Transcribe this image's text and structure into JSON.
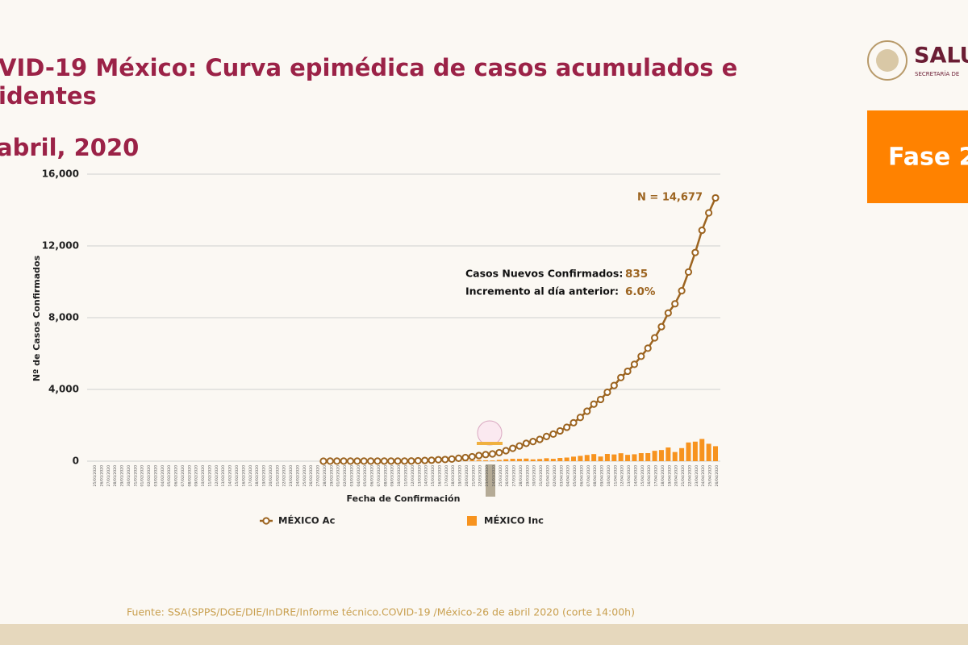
{
  "slide": {
    "title_line1": "VID-19 México: Curva epimédica de casos acumulados e",
    "title_line2": "identes",
    "date": "abril, 2020",
    "logo_text": "SALU",
    "logo_sub": "SECRETARÍA DE",
    "phase": "Fase 2",
    "source": "Fuente: SSA(SPPS/DGE/DIE/InDRE/Informe técnico.COVID-19 /México-26 de abril 2020 (corte 14:00h)"
  },
  "chart_data": {
    "type": "line",
    "y_label": "Nº de Casos Confirmados",
    "x_label": "Fecha de Confirmación",
    "ylim": [
      0,
      16000
    ],
    "yticks": [
      0,
      {
        "value": 4000,
        "label": "4,000"
      },
      {
        "value": 8000,
        "label": "8,000"
      },
      {
        "value": 12000,
        "label": "12,000"
      },
      {
        "value": 16000,
        "label": "16,000"
      }
    ],
    "grid": true,
    "annotations": {
      "total": "N = 14,677",
      "new_label": "Casos Nuevos Confirmados:",
      "new_value": "835",
      "inc_label": "Incremento al día anterior:",
      "inc_value": "6.0%"
    },
    "categories": [
      "25/01/2020",
      "26/01/2020",
      "27/01/2020",
      "28/01/2020",
      "29/01/2020",
      "30/01/2020",
      "31/01/2020",
      "01/02/2020",
      "02/02/2020",
      "03/02/2020",
      "04/02/2020",
      "05/02/2020",
      "06/02/2020",
      "07/02/2020",
      "08/02/2020",
      "09/02/2020",
      "10/02/2020",
      "11/02/2020",
      "12/02/2020",
      "13/02/2020",
      "14/02/2020",
      "15/02/2020",
      "16/02/2020",
      "17/02/2020",
      "18/02/2020",
      "19/02/2020",
      "20/02/2020",
      "21/02/2020",
      "22/02/2020",
      "23/02/2020",
      "24/02/2020",
      "25/02/2020",
      "26/02/2020",
      "27/02/2020",
      "28/02/2020",
      "29/02/2020",
      "01/03/2020",
      "02/03/2020",
      "03/03/2020",
      "04/03/2020",
      "05/03/2020",
      "06/03/2020",
      "07/03/2020",
      "08/03/2020",
      "09/03/2020",
      "10/03/2020",
      "11/03/2020",
      "12/03/2020",
      "13/03/2020",
      "14/03/2020",
      "15/03/2020",
      "16/03/2020",
      "17/03/2020",
      "18/03/2020",
      "19/03/2020",
      "20/03/2020",
      "21/03/2020",
      "22/03/2020",
      "23/03/2020",
      "24/03/2020",
      "25/03/2020",
      "26/03/2020",
      "27/03/2020",
      "28/03/2020",
      "29/03/2020",
      "30/03/2020",
      "31/03/2020",
      "01/04/2020",
      "02/04/2020",
      "03/04/2020",
      "04/04/2020",
      "05/04/2020",
      "06/04/2020",
      "07/04/2020",
      "08/04/2020",
      "09/04/2020",
      "10/04/2020",
      "11/04/2020",
      "12/04/2020",
      "13/04/2020",
      "14/04/2020",
      "15/04/2020",
      "16/04/2020",
      "17/04/2020",
      "18/04/2020",
      "19/04/2020",
      "20/04/2020",
      "21/04/2020",
      "22/04/2020",
      "23/04/2020",
      "24/04/2020",
      "25/04/2020",
      "26/04/2020"
    ],
    "series": [
      {
        "name": "MÉXICO Inc",
        "type": "bar",
        "color": "#f7931e",
        "values": [
          null,
          null,
          null,
          null,
          null,
          null,
          null,
          null,
          null,
          null,
          null,
          null,
          null,
          null,
          null,
          null,
          null,
          null,
          null,
          null,
          null,
          null,
          null,
          null,
          null,
          null,
          null,
          null,
          null,
          null,
          null,
          null,
          null,
          null,
          1,
          3,
          1,
          0,
          0,
          0,
          0,
          1,
          0,
          1,
          0,
          0,
          1,
          4,
          14,
          15,
          12,
          29,
          11,
          25,
          46,
          39,
          48,
          65,
          51,
          38,
          70,
          110,
          132,
          131,
          145,
          101,
          121,
          163,
          132,
          178,
          202,
          253,
          296,
          346,
          396,
          260,
          403,
          375,
          442,
          353,
          385,
          448,
          450,
          578,
          622,
          764,
          511,
          729,
          1043,
          1089,
          1239,
          970,
          835
        ]
      },
      {
        "name": "MÉXICO Ac",
        "type": "line",
        "color": "#9c6420",
        "values": [
          null,
          null,
          null,
          null,
          null,
          null,
          null,
          null,
          null,
          null,
          null,
          null,
          null,
          null,
          null,
          null,
          null,
          null,
          null,
          null,
          null,
          null,
          null,
          null,
          null,
          null,
          null,
          null,
          null,
          null,
          null,
          null,
          null,
          null,
          1,
          4,
          5,
          5,
          5,
          5,
          5,
          6,
          6,
          7,
          7,
          7,
          8,
          12,
          26,
          41,
          53,
          82,
          93,
          118,
          164,
          203,
          251,
          316,
          367,
          405,
          475,
          585,
          717,
          848,
          993,
          1094,
          1215,
          1378,
          1510,
          1688,
          1890,
          2143,
          2439,
          2785,
          3181,
          3441,
          3844,
          4219,
          4661,
          5014,
          5399,
          5847,
          6297,
          6875,
          7497,
          8261,
          8772,
          9501,
          10544,
          11633,
          12872,
          13842,
          14677
        ]
      }
    ]
  }
}
